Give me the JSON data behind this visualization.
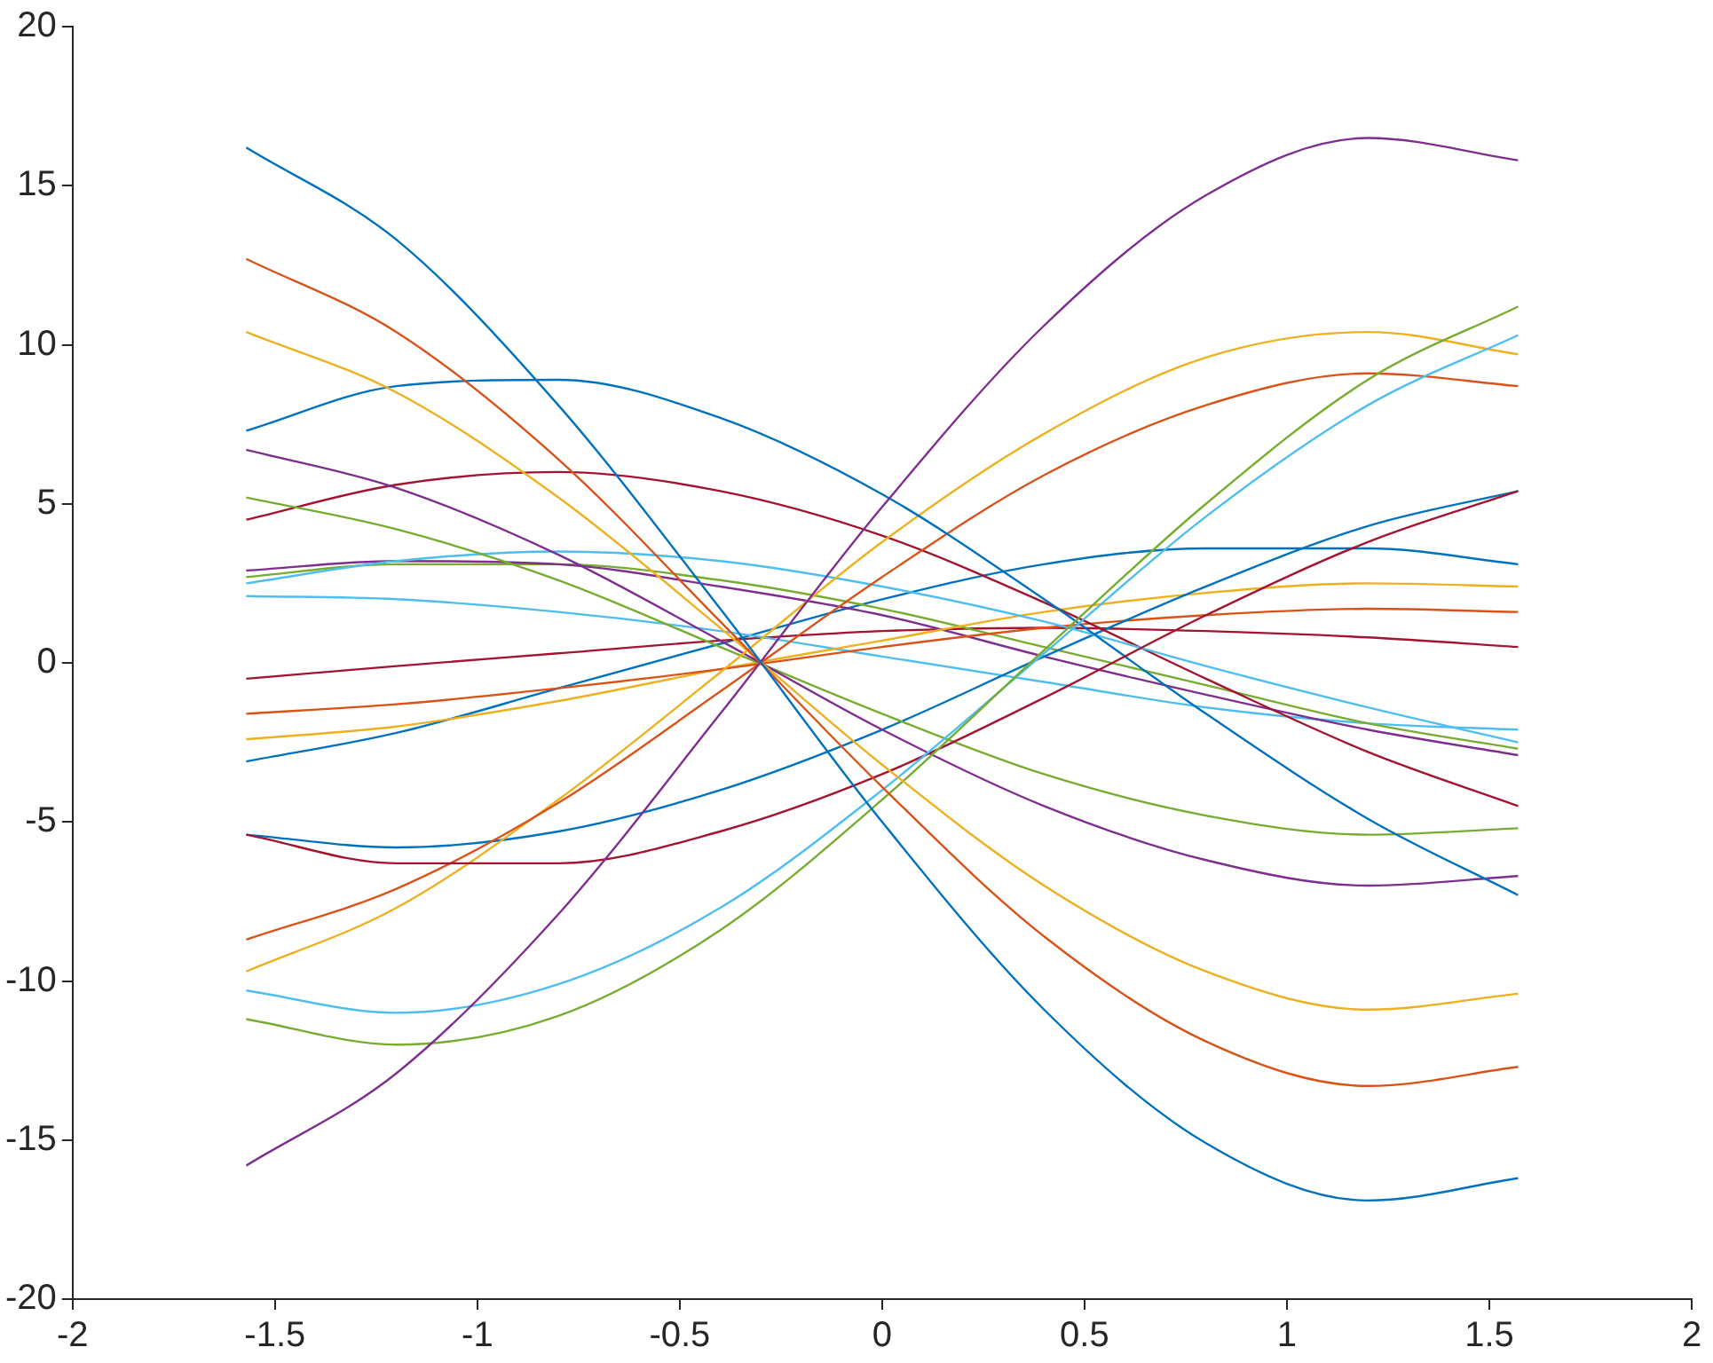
{
  "chart_data": {
    "type": "line",
    "x": [
      -1.571,
      -1.2,
      -0.8,
      -0.4,
      0,
      0.4,
      0.8,
      1.2,
      1.571
    ],
    "xlim": [
      -2,
      2
    ],
    "xticks": [
      -2,
      -1.5,
      -1,
      -0.5,
      0,
      0.5,
      1,
      1.5,
      2
    ],
    "ylim": [
      -20,
      20
    ],
    "yticks": [
      -20,
      -15,
      -10,
      -5,
      0,
      5,
      10,
      15,
      20
    ],
    "grid": false,
    "legend": false,
    "marker": "none",
    "line_style": "solid",
    "series": [
      {
        "color": "#0072bd",
        "values": [
          16.2,
          13.3,
          8.1,
          1.7,
          -5.0,
          -10.9,
          -15.1,
          -16.9,
          -16.2
        ]
      },
      {
        "color": "#d95319",
        "values": [
          12.7,
          10.4,
          6.4,
          1.3,
          -3.9,
          -8.6,
          -11.9,
          -13.3,
          -12.7
        ]
      },
      {
        "color": "#edb120",
        "values": [
          10.4,
          8.5,
          5.2,
          1.1,
          -3.2,
          -7.0,
          -9.7,
          -10.9,
          -10.4
        ]
      },
      {
        "color": "#7e2f8e",
        "values": [
          -15.8,
          -12.9,
          -7.9,
          -1.6,
          4.9,
          10.6,
          14.7,
          16.5,
          15.8
        ]
      },
      {
        "color": "#77ac30",
        "values": [
          -11.2,
          -12.0,
          -11.1,
          -8.4,
          -4.3,
          0.4,
          5.0,
          8.9,
          11.2
        ]
      },
      {
        "color": "#4dbeee",
        "values": [
          -10.3,
          -11.0,
          -10.1,
          -7.7,
          -4.0,
          0.3,
          4.6,
          8.1,
          10.3
        ]
      },
      {
        "color": "#a2142f",
        "values": [
          -5.4,
          -6.3,
          -6.3,
          -5.3,
          -3.5,
          -1.1,
          1.5,
          3.8,
          5.4
        ]
      },
      {
        "color": "#0072bd",
        "values": [
          7.3,
          8.7,
          8.9,
          7.7,
          5.3,
          2.0,
          -1.6,
          -4.9,
          -7.3
        ]
      },
      {
        "color": "#d95319",
        "values": [
          -8.7,
          -7.1,
          -4.4,
          -0.9,
          2.7,
          5.9,
          8.1,
          9.1,
          8.7
        ]
      },
      {
        "color": "#edb120",
        "values": [
          -9.7,
          -7.7,
          -4.3,
          -0.3,
          3.8,
          7.2,
          9.6,
          10.4,
          9.7
        ]
      },
      {
        "color": "#7e2f8e",
        "values": [
          6.7,
          5.5,
          3.4,
          0.7,
          -2.1,
          -4.5,
          -6.2,
          -7.0,
          -6.7
        ]
      },
      {
        "color": "#77ac30",
        "values": [
          5.2,
          4.2,
          2.6,
          0.5,
          -1.6,
          -3.5,
          -4.8,
          -5.4,
          -5.2
        ]
      },
      {
        "color": "#4dbeee",
        "values": [
          2.5,
          3.2,
          3.5,
          3.2,
          2.4,
          1.3,
          -0.1,
          -1.4,
          -2.5
        ]
      },
      {
        "color": "#a2142f",
        "values": [
          4.5,
          5.6,
          6.0,
          5.4,
          4.0,
          1.9,
          -0.5,
          -2.8,
          -4.5
        ]
      },
      {
        "color": "#0072bd",
        "values": [
          -5.4,
          -5.8,
          -5.3,
          -4.0,
          -2.1,
          0.2,
          2.4,
          4.3,
          5.4
        ]
      },
      {
        "color": "#d95319",
        "values": [
          -1.6,
          -1.3,
          -0.8,
          -0.2,
          0.5,
          1.1,
          1.5,
          1.7,
          1.6
        ]
      },
      {
        "color": "#edb120",
        "values": [
          -2.4,
          -2.0,
          -1.2,
          -0.2,
          0.7,
          1.6,
          2.2,
          2.5,
          2.4
        ]
      },
      {
        "color": "#7e2f8e",
        "values": [
          2.9,
          3.2,
          3.1,
          2.4,
          1.5,
          0.2,
          -1.0,
          -2.1,
          -2.9
        ]
      },
      {
        "color": "#77ac30",
        "values": [
          2.7,
          3.1,
          3.1,
          2.6,
          1.7,
          0.5,
          -0.7,
          -1.9,
          -2.7
        ]
      },
      {
        "color": "#4dbeee",
        "values": [
          2.1,
          2.0,
          1.6,
          1.0,
          0.2,
          -0.6,
          -1.4,
          -1.9,
          -2.1
        ]
      },
      {
        "color": "#a2142f",
        "values": [
          -0.5,
          -0.1,
          0.3,
          0.7,
          1.0,
          1.1,
          1.0,
          0.8,
          0.5
        ]
      },
      {
        "color": "#0072bd",
        "values": [
          -3.1,
          -2.2,
          -0.8,
          0.6,
          2.0,
          3.1,
          3.6,
          3.6,
          3.1
        ]
      }
    ]
  }
}
